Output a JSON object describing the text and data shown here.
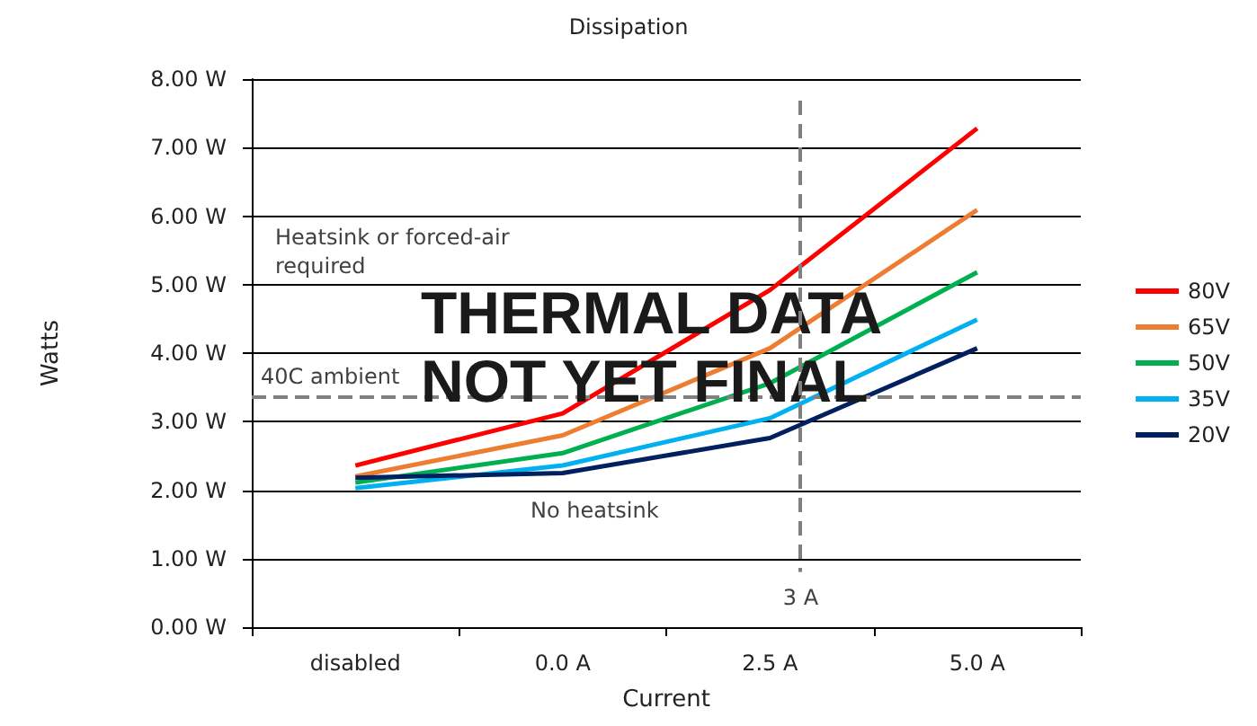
{
  "chart_data": {
    "type": "line",
    "title": "Dissipation",
    "xlabel": "Current",
    "ylabel": "Watts",
    "categories": [
      "disabled",
      "0.0 A",
      "2.5 A",
      "5.0 A"
    ],
    "series": [
      {
        "name": "80V",
        "color": "#ff0000",
        "values": [
          2.36,
          3.12,
          4.92,
          7.28
        ]
      },
      {
        "name": "65V",
        "color": "#ed7d31",
        "values": [
          2.2,
          2.8,
          4.07,
          6.09
        ]
      },
      {
        "name": "50V",
        "color": "#00b050",
        "values": [
          2.11,
          2.54,
          3.56,
          5.18
        ]
      },
      {
        "name": "35V",
        "color": "#00b0f0",
        "values": [
          2.03,
          2.36,
          3.05,
          4.49
        ]
      },
      {
        "name": "20V",
        "color": "#002060",
        "values": [
          2.18,
          2.25,
          2.76,
          4.07
        ]
      }
    ],
    "ylim": [
      0,
      8
    ],
    "yticks": [
      {
        "value": 0,
        "label": "0.00 W"
      },
      {
        "value": 1,
        "label": "1.00 W"
      },
      {
        "value": 2,
        "label": "2.00 W"
      },
      {
        "value": 3,
        "label": "3.00 W"
      },
      {
        "value": 4,
        "label": "4.00 W"
      },
      {
        "value": 5,
        "label": "5.00 W"
      },
      {
        "value": 6,
        "label": "6.00 W"
      },
      {
        "value": 7,
        "label": "7.00 W"
      },
      {
        "value": 8,
        "label": "8.00 W"
      }
    ],
    "ref_lines": [
      {
        "axis": "y",
        "value": 3.37,
        "label": "40C ambient",
        "color": "#808080",
        "line_style": "dashed"
      }
    ],
    "annotations": [
      "Heatsink or forced-air\nrequired",
      "THERMAL DATA\nNOT YET FINAL",
      "No heatsink",
      "3 A"
    ],
    "grid": "y",
    "legend": "right",
    "marker": "none",
    "line_style": "solid"
  }
}
